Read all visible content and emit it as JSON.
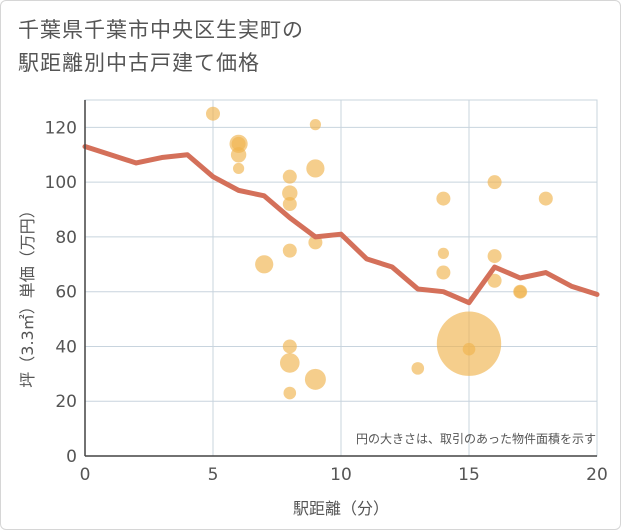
{
  "title": {
    "line1": "千葉県千葉市中央区生実町の",
    "line2": "駅距離別中古戸建て価格"
  },
  "chart_data": {
    "type": "scatter",
    "xlabel": "駅距離（分）",
    "ylabel": "坪（3.3㎡）単価（万円）",
    "xlim": [
      0,
      20
    ],
    "ylim": [
      0,
      130
    ],
    "xticks": [
      0,
      5,
      10,
      15,
      20
    ],
    "yticks": [
      0,
      20,
      40,
      60,
      80,
      100,
      120
    ],
    "grid": true,
    "note": "円の大きさは、取引のあった物件面積を示す",
    "colors": {
      "line": "#d4705a",
      "bubble": "#f0b44f",
      "grid": "#c8d4de"
    },
    "line": {
      "x": [
        0,
        1,
        2,
        3,
        4,
        5,
        6,
        7,
        8,
        9,
        10,
        11,
        12,
        13,
        14,
        15,
        16,
        17,
        18,
        19,
        20
      ],
      "y": [
        113,
        110,
        107,
        109,
        110,
        102,
        97,
        95,
        87,
        80,
        81,
        72,
        69,
        61,
        60,
        56,
        69,
        65,
        67,
        62,
        59
      ]
    },
    "points": [
      {
        "x": 5,
        "y": 125,
        "size": 1.0
      },
      {
        "x": 6,
        "y": 114,
        "size": 1.3
      },
      {
        "x": 6,
        "y": 110,
        "size": 1.1
      },
      {
        "x": 6,
        "y": 105,
        "size": 0.8
      },
      {
        "x": 6,
        "y": 114,
        "size": 1.0
      },
      {
        "x": 7,
        "y": 70,
        "size": 1.3
      },
      {
        "x": 8,
        "y": 102,
        "size": 1.0
      },
      {
        "x": 8,
        "y": 96,
        "size": 1.1
      },
      {
        "x": 8,
        "y": 92,
        "size": 1.0
      },
      {
        "x": 8,
        "y": 75,
        "size": 1.0
      },
      {
        "x": 8,
        "y": 40,
        "size": 1.0
      },
      {
        "x": 8,
        "y": 34,
        "size": 1.4
      },
      {
        "x": 8,
        "y": 23,
        "size": 0.9
      },
      {
        "x": 9,
        "y": 121,
        "size": 0.8
      },
      {
        "x": 9,
        "y": 105,
        "size": 1.3
      },
      {
        "x": 9,
        "y": 78,
        "size": 1.0
      },
      {
        "x": 9,
        "y": 28,
        "size": 1.5
      },
      {
        "x": 13,
        "y": 32,
        "size": 0.9
      },
      {
        "x": 14,
        "y": 94,
        "size": 1.0
      },
      {
        "x": 14,
        "y": 74,
        "size": 0.8
      },
      {
        "x": 14,
        "y": 67,
        "size": 1.0
      },
      {
        "x": 15,
        "y": 41,
        "size": 4.6
      },
      {
        "x": 15,
        "y": 39,
        "size": 0.9
      },
      {
        "x": 16,
        "y": 100,
        "size": 1.0
      },
      {
        "x": 16,
        "y": 73,
        "size": 1.0
      },
      {
        "x": 16,
        "y": 64,
        "size": 1.0
      },
      {
        "x": 17,
        "y": 60,
        "size": 1.0
      },
      {
        "x": 17,
        "y": 60,
        "size": 0.9
      },
      {
        "x": 18,
        "y": 94,
        "size": 1.0
      }
    ]
  }
}
